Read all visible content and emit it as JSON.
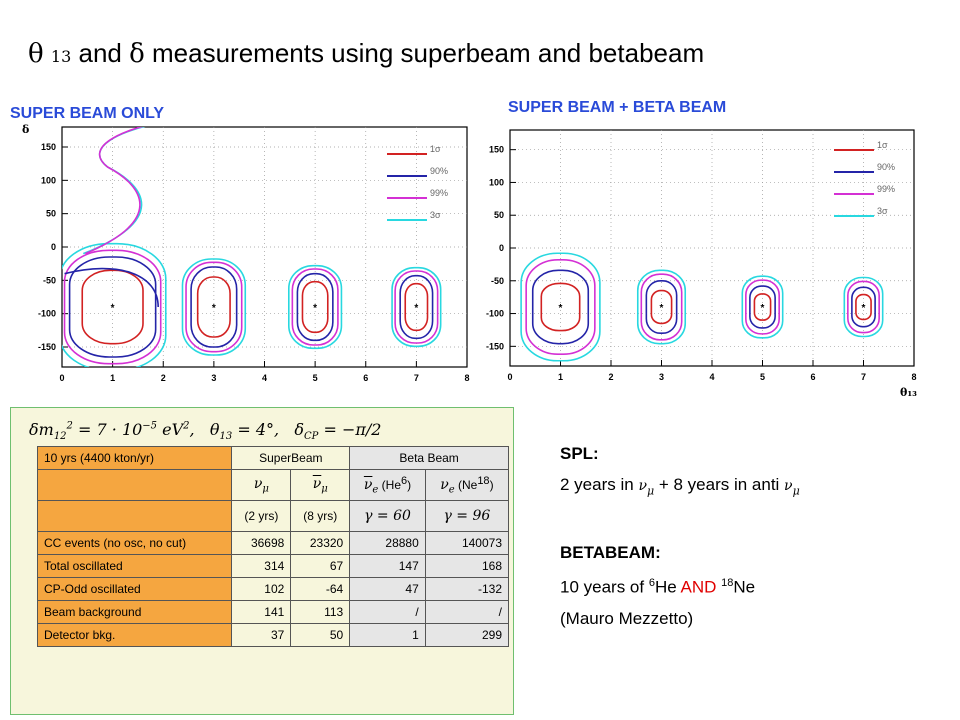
{
  "title": {
    "theta": "θ",
    "sub13": "13",
    "and": "and",
    "delta": "δ",
    "rest": "measurements using superbeam and betabeam"
  },
  "chart_data": [
    {
      "type": "contour",
      "title": "SUPER BEAM ONLY",
      "xlabel": "",
      "ylabel": "δ",
      "xlim": [
        0,
        8
      ],
      "ylim": [
        -180,
        180
      ],
      "xticks": [
        0,
        1,
        2,
        3,
        4,
        5,
        6,
        7,
        8
      ],
      "yticks": [
        150,
        100,
        50,
        0,
        -50,
        -100,
        -150
      ],
      "legend": [
        "1σ",
        "90%",
        "99%",
        "3σ"
      ],
      "colors": [
        "#d22222",
        "#2424a8",
        "#d430d4",
        "#28d8e0"
      ],
      "true_points": [
        {
          "x": 1,
          "y": -90
        },
        {
          "x": 3,
          "y": -90
        },
        {
          "x": 5,
          "y": -90
        },
        {
          "x": 7,
          "y": -90
        }
      ],
      "contours": [
        {
          "x": 1,
          "y": -90,
          "hw": [
            0.6,
            0.85,
            0.95,
            1.05
          ],
          "hh": [
            55,
            75,
            85,
            95
          ]
        },
        {
          "x": 3,
          "y": -90,
          "hw": [
            0.32,
            0.45,
            0.55,
            0.62
          ],
          "hh": [
            45,
            60,
            67,
            72
          ]
        },
        {
          "x": 5,
          "y": -90,
          "hw": [
            0.25,
            0.35,
            0.45,
            0.52
          ],
          "hh": [
            38,
            50,
            57,
            62
          ]
        },
        {
          "x": 7,
          "y": -90,
          "hw": [
            0.22,
            0.32,
            0.42,
            0.48
          ],
          "hh": [
            35,
            47,
            54,
            59
          ]
        }
      ]
    },
    {
      "type": "contour",
      "title": "SUPER BEAM + BETA BEAM",
      "xlabel": "θ₁₃",
      "xsub": "13",
      "ylabel": "",
      "xlim": [
        0,
        8
      ],
      "ylim": [
        -180,
        180
      ],
      "xticks": [
        0,
        1,
        2,
        3,
        4,
        5,
        6,
        7,
        8
      ],
      "yticks": [
        150,
        100,
        50,
        0,
        -50,
        -100,
        -150
      ],
      "legend": [
        "1σ",
        "90%",
        "99%",
        "3σ"
      ],
      "colors": [
        "#d22222",
        "#2424a8",
        "#d430d4",
        "#28d8e0"
      ],
      "true_points": [
        {
          "x": 1,
          "y": -90
        },
        {
          "x": 3,
          "y": -90
        },
        {
          "x": 5,
          "y": -90
        },
        {
          "x": 7,
          "y": -90
        }
      ],
      "contours": [
        {
          "x": 1,
          "y": -90,
          "hw": [
            0.38,
            0.55,
            0.68,
            0.78
          ],
          "hh": [
            36,
            56,
            72,
            82
          ]
        },
        {
          "x": 3,
          "y": -90,
          "hw": [
            0.2,
            0.3,
            0.4,
            0.47
          ],
          "hh": [
            25,
            40,
            50,
            56
          ]
        },
        {
          "x": 5,
          "y": -90,
          "hw": [
            0.16,
            0.25,
            0.33,
            0.4
          ],
          "hh": [
            20,
            32,
            41,
            47
          ]
        },
        {
          "x": 7,
          "y": -90,
          "hw": [
            0.15,
            0.23,
            0.31,
            0.38
          ],
          "hh": [
            19,
            30,
            39,
            45
          ]
        }
      ]
    }
  ],
  "params": {
    "dm": "δm",
    "dm_sub": "12",
    "dm_sup": "2",
    "dm_val": " = 7 · 10",
    "dm_exp": "−5",
    "dm_unit": " eV",
    "dm_unit_sup": "2",
    "dm_comma": ",",
    "theta": "θ",
    "theta_sub": "13",
    "theta_val": " = 4°,",
    "dcp": "δ",
    "dcp_sub": "CP",
    "dcp_val": " = −π/2"
  },
  "table": {
    "head1": "10 yrs (4400 kton/yr)",
    "superbeam": "SuperBeam",
    "betabeam": "Beta Beam",
    "nu_mu": "ν",
    "nu_mu_sub": "μ",
    "nubar_mu": "ν",
    "nubar_mu_sub": "μ",
    "nubar_e": "ν",
    "nubar_e_sub": "e",
    "he6": "(He",
    "he6_sup": "6",
    "he6_close": ")",
    "nu_e": "ν",
    "nu_e_sub": "e",
    "ne18": "(Ne",
    "ne18_sup": "18",
    "ne18_close": ")",
    "yrs2": "(2 yrs)",
    "yrs8": "(8 yrs)",
    "gamma60": "γ = 60",
    "gamma96": "γ = 96",
    "rows": [
      {
        "label": "CC events (no osc, no cut)",
        "v": [
          "36698",
          "23320",
          "28880",
          "140073"
        ]
      },
      {
        "label": "Total oscillated",
        "v": [
          "314",
          "67",
          "147",
          "168"
        ]
      },
      {
        "label": "CP-Odd oscillated",
        "v": [
          "102",
          "-64",
          "47",
          "-132"
        ]
      },
      {
        "label": "Beam background",
        "v": [
          "141",
          "113",
          "/",
          "/"
        ]
      },
      {
        "label": "Detector bkg.",
        "v": [
          "37",
          "50",
          "1",
          "299"
        ]
      }
    ]
  },
  "notes": {
    "spl_head": "SPL:",
    "spl_a": "2 years in ",
    "spl_nu1": "ν",
    "spl_nu1_sub": "μ",
    "spl_b": " + 8 years in  anti ",
    "spl_nu2": "ν",
    "spl_nu2_sub": "μ",
    "bb_head": "BETABEAM:",
    "bb_a": "10 years of  ",
    "bb_sup1": "6",
    "bb_he": "He  ",
    "bb_and": "AND",
    "bb_sp": "  ",
    "bb_sup2": "18",
    "bb_ne": "Ne",
    "credit": "(Mauro Mezzetto)"
  }
}
